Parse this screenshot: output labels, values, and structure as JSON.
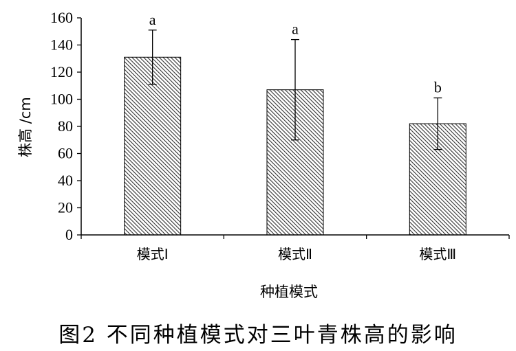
{
  "caption": "图2   不同种植模式对三叶青株高的影响",
  "chart_data": {
    "type": "bar",
    "categories": [
      "模式Ⅰ",
      "模式Ⅱ",
      "模式Ⅲ"
    ],
    "values": [
      131,
      107,
      82
    ],
    "error": [
      20,
      37,
      19
    ],
    "significance": [
      "a",
      "a",
      "b"
    ],
    "xlabel": "种植模式",
    "ylabel": "株高 /cm",
    "ylim": [
      0,
      160
    ],
    "yticks": [
      0,
      20,
      40,
      60,
      80,
      100,
      120,
      140,
      160
    ],
    "grid": false,
    "bar_pattern": "diagonal-hatch",
    "bar_color": "#000000"
  }
}
